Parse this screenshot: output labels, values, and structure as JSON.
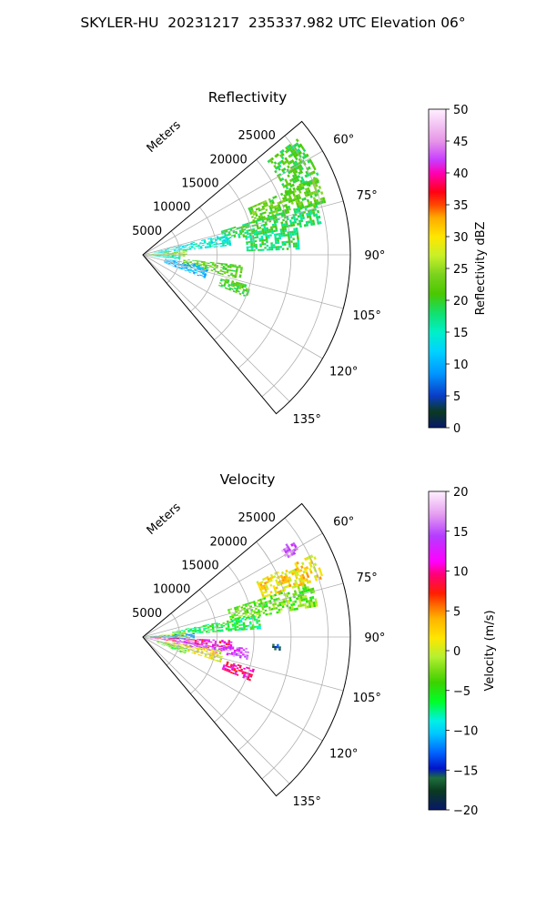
{
  "figure": {
    "suptitle": "SKYLER-HU  20231217  235337.982 UTC Elevation 06°"
  },
  "chart_data": [
    {
      "type": "heatmap",
      "title": "Reflectivity",
      "projection": "polar-sector",
      "range_label": "Meters",
      "range_ticks": [
        5000,
        10000,
        15000,
        20000,
        25000
      ],
      "range_max": 28000,
      "azimuth_range_deg": [
        50,
        140
      ],
      "azimuth_ticks": [
        "60°",
        "75°",
        "90°",
        "105°",
        "120°",
        "135°"
      ],
      "colorbar": {
        "label": "Reflectivity dBZ",
        "vmin": 0,
        "vmax": 50,
        "ticks": [
          "0",
          "5",
          "10",
          "15",
          "20",
          "25",
          "30",
          "35",
          "40",
          "45",
          "50"
        ]
      },
      "regions": [
        {
          "az": [
            53,
            67
          ],
          "r": [
            21000,
            26000
          ],
          "value": 20
        },
        {
          "az": [
            66,
            74
          ],
          "r": [
            15500,
            25500
          ],
          "value": 22
        },
        {
          "az": [
            73,
            80
          ],
          "r": [
            11000,
            24500
          ],
          "value": 19
        },
        {
          "az": [
            76,
            84
          ],
          "r": [
            1500,
            12000
          ],
          "value": 14
        },
        {
          "az": [
            80,
            88
          ],
          "r": [
            14000,
            21000
          ],
          "value": 18
        },
        {
          "az": [
            84,
            92
          ],
          "r": [
            300,
            6000
          ],
          "value": 24
        },
        {
          "az": [
            90,
            97
          ],
          "r": [
            300,
            5000
          ],
          "value": 16
        },
        {
          "az": [
            96,
            104
          ],
          "r": [
            5500,
            13500
          ],
          "value": 22
        },
        {
          "az": [
            100,
            110
          ],
          "r": [
            3000,
            9000
          ],
          "value": 10
        },
        {
          "az": [
            106,
            112
          ],
          "r": [
            11000,
            15000
          ],
          "value": 21
        }
      ]
    },
    {
      "type": "heatmap",
      "title": "Velocity",
      "projection": "polar-sector",
      "range_label": "Meters",
      "range_ticks": [
        5000,
        10000,
        15000,
        20000,
        25000
      ],
      "range_max": 28000,
      "azimuth_range_deg": [
        50,
        140
      ],
      "azimuth_ticks": [
        "60°",
        "75°",
        "90°",
        "105°",
        "120°",
        "135°"
      ],
      "colorbar": {
        "label": "Velocity (m/s)",
        "vmin": -20,
        "vmax": 20,
        "ticks": [
          "−20",
          "−15",
          "−10",
          "−5",
          "0",
          "5",
          "10",
          "15",
          "20"
        ]
      },
      "regions": [
        {
          "az": [
            57,
            61
          ],
          "r": [
            22000,
            24000
          ],
          "value": 16
        },
        {
          "az": [
            64,
            72
          ],
          "r": [
            17000,
            25500
          ],
          "value": 2
        },
        {
          "az": [
            72,
            80
          ],
          "r": [
            12000,
            24000
          ],
          "value": -3
        },
        {
          "az": [
            79,
            86
          ],
          "r": [
            4000,
            16000
          ],
          "value": -6
        },
        {
          "az": [
            83,
            90
          ],
          "r": [
            300,
            6000
          ],
          "value": -1
        },
        {
          "az": [
            86,
            93
          ],
          "r": [
            400,
            7000
          ],
          "value": -11
        },
        {
          "az": [
            92,
            98
          ],
          "r": [
            1000,
            12000
          ],
          "value": 10
        },
        {
          "az": [
            96,
            102
          ],
          "r": [
            4000,
            14500
          ],
          "value": 15
        },
        {
          "az": [
            100,
            108
          ],
          "r": [
            3000,
            11000
          ],
          "value": 1
        },
        {
          "az": [
            104,
            112
          ],
          "r": [
            2000,
            6000
          ],
          "value": -4
        },
        {
          "az": [
            106,
            112
          ],
          "r": [
            11500,
            15500
          ],
          "value": 10
        },
        {
          "az": [
            93,
            95
          ],
          "r": [
            17500,
            18500
          ],
          "value": -15
        }
      ]
    }
  ]
}
